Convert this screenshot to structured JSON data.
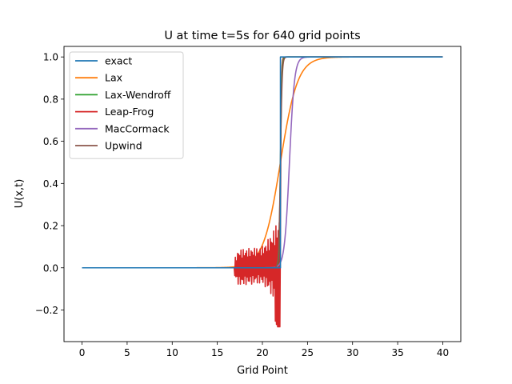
{
  "chart_data": {
    "type": "line",
    "title": "U at time t=5s for 640 grid points",
    "xlabel": "Grid Point",
    "ylabel": "U(x,t)",
    "xlim": [
      -2,
      42
    ],
    "ylim": [
      -0.35,
      1.05
    ],
    "xticks": [
      0,
      5,
      10,
      15,
      20,
      25,
      30,
      35,
      40
    ],
    "yticks": [
      -0.2,
      0.0,
      0.2,
      0.4,
      0.6,
      0.8,
      1.0
    ],
    "ytick_labels": [
      "−0.2",
      "0.0",
      "0.2",
      "0.4",
      "0.6",
      "0.8",
      "1.0"
    ],
    "grid": false,
    "legend_position": "upper-left",
    "series": [
      {
        "name": "exact",
        "color": "#1f77b4",
        "shape": "step",
        "params": {
          "x0": 22.0
        }
      },
      {
        "name": "Lax",
        "color": "#ff7f0e",
        "shape": "tanh",
        "params": {
          "center": 22.0,
          "width": 1.9
        }
      },
      {
        "name": "Lax-Wendroff",
        "color": "#2ca02c",
        "shape": "tanh",
        "params": {
          "center": 22.0,
          "width": 0.15
        }
      },
      {
        "name": "Leap-Frog",
        "color": "#d62728",
        "shape": "oscillating",
        "params": {
          "start": 16.9,
          "end": 22.0,
          "min_dip": -0.28
        }
      },
      {
        "name": "MacCormack",
        "color": "#9467bd",
        "shape": "tanh",
        "params": {
          "center": 23.0,
          "width": 0.55
        }
      },
      {
        "name": "Upwind",
        "color": "#8c564b",
        "shape": "tanh",
        "params": {
          "center": 22.0,
          "width": 0.18
        }
      }
    ]
  }
}
